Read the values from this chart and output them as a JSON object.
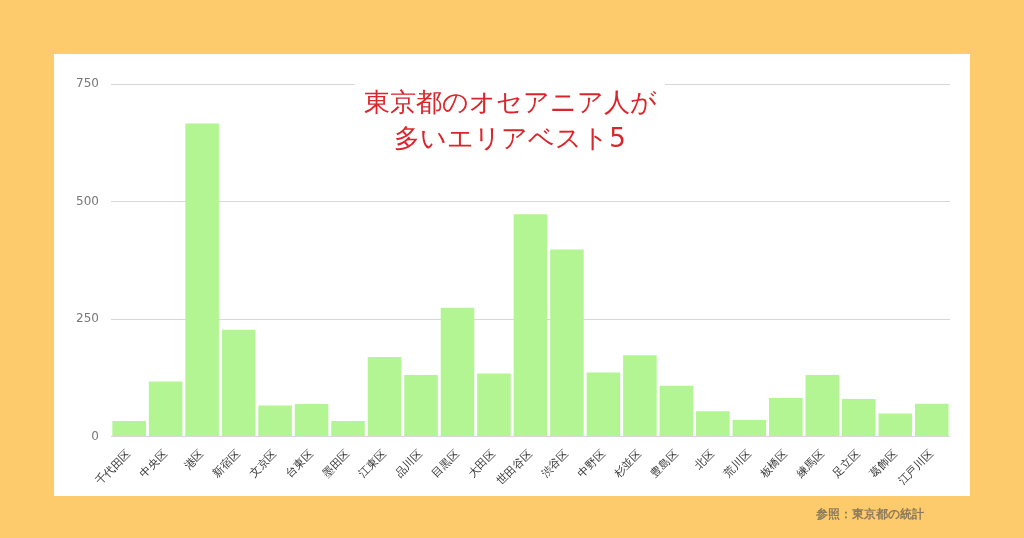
{
  "chart_data": {
    "type": "bar",
    "title": "東京都のオセアニア人が多いエリアベスト5",
    "categories": [
      "千代田区",
      "中央区",
      "港区",
      "新宿区",
      "文京区",
      "台東区",
      "墨田区",
      "江東区",
      "品川区",
      "目黒区",
      "大田区",
      "世田谷区",
      "渋谷区",
      "中野区",
      "杉並区",
      "豊島区",
      "北区",
      "荒川区",
      "板橋区",
      "練馬区",
      "足立区",
      "葛飾区",
      "江戸川区"
    ],
    "values": [
      33,
      117,
      666,
      227,
      66,
      69,
      33,
      169,
      131,
      274,
      134,
      473,
      398,
      136,
      173,
      108,
      54,
      35,
      82,
      131,
      80,
      49,
      70
    ],
    "color": "#b2f592",
    "ylim": [
      0,
      750
    ],
    "yticks": [
      0,
      250,
      500,
      750
    ],
    "grid": "y",
    "annotations": [
      "参照：東京都の統計"
    ]
  }
}
